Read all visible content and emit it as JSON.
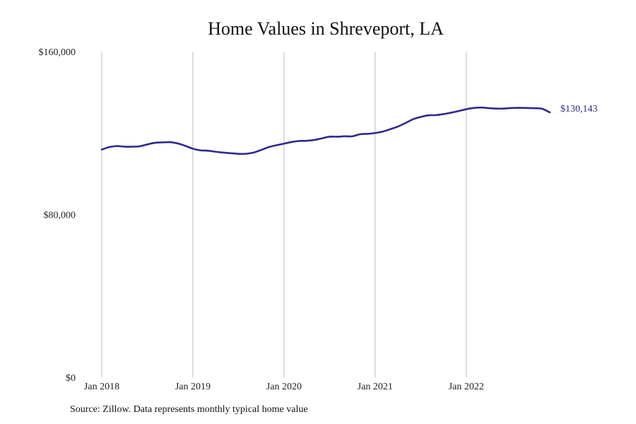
{
  "chart_data": {
    "type": "line",
    "title": "Home Values in Shreveport, LA",
    "xlabel": "",
    "ylabel": "",
    "x_ticks": [
      "Jan 2018",
      "Jan 2019",
      "Jan 2020",
      "Jan 2021",
      "Jan 2022"
    ],
    "y_ticks": [
      "$160,000",
      "$80,000",
      "$0"
    ],
    "ylim": [
      0,
      160000
    ],
    "xlim": [
      "2018-01",
      "2022-12"
    ],
    "grid": "vertical",
    "line_color": "#2e2a8a",
    "end_label": "$130,143",
    "series": [
      {
        "x": [
          "2018-01",
          "2018-02",
          "2018-03",
          "2018-04",
          "2018-05",
          "2018-06",
          "2018-07",
          "2018-08",
          "2018-09",
          "2018-10",
          "2018-11",
          "2018-12",
          "2019-01",
          "2019-02",
          "2019-03",
          "2019-04",
          "2019-05",
          "2019-06",
          "2019-07",
          "2019-08",
          "2019-09",
          "2019-10",
          "2019-11",
          "2019-12",
          "2020-01",
          "2020-02",
          "2020-03",
          "2020-04",
          "2020-05",
          "2020-06",
          "2020-07",
          "2020-08",
          "2020-09",
          "2020-10",
          "2020-11",
          "2020-12",
          "2021-01",
          "2021-02",
          "2021-03",
          "2021-04",
          "2021-05",
          "2021-06",
          "2021-07",
          "2021-08",
          "2021-09",
          "2021-10",
          "2021-11",
          "2021-12",
          "2022-01",
          "2022-02",
          "2022-03",
          "2022-04",
          "2022-05",
          "2022-06",
          "2022-07",
          "2022-08",
          "2022-09",
          "2022-10",
          "2022-11",
          "2022-12"
        ],
        "values": [
          111900,
          113100,
          113600,
          113300,
          113300,
          113500,
          114400,
          115200,
          115400,
          115500,
          114900,
          113700,
          112300,
          111500,
          111300,
          110800,
          110400,
          110100,
          109800,
          109800,
          110400,
          111700,
          113100,
          114000,
          114800,
          115600,
          116100,
          116200,
          116600,
          117400,
          118200,
          118200,
          118400,
          118400,
          119400,
          119600,
          120000,
          120700,
          121900,
          123200,
          124900,
          126800,
          127900,
          128700,
          128800,
          129300,
          130000,
          130800,
          131700,
          132300,
          132500,
          132200,
          132000,
          132000,
          132300,
          132400,
          132300,
          132200,
          131900,
          130143
        ]
      }
    ]
  },
  "footer": {
    "source": "Source: Zillow. Data represents monthly typical home value"
  }
}
